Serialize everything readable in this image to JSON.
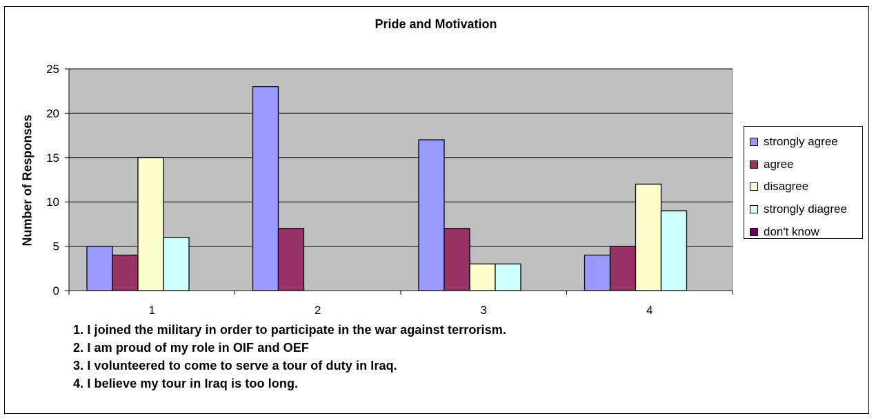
{
  "chart_data": {
    "type": "bar",
    "title": "Pride and Motivation",
    "xlabel": "",
    "ylabel": "Number of Responses",
    "categories": [
      "1",
      "2",
      "3",
      "4"
    ],
    "ylim": [
      0,
      25
    ],
    "yticks": [
      0,
      5,
      10,
      15,
      20,
      25
    ],
    "grid": true,
    "legend_position": "right",
    "series": [
      {
        "name": "strongly agree",
        "color": "#9999ff",
        "values": [
          5,
          23,
          17,
          4
        ]
      },
      {
        "name": "agree",
        "color": "#993366",
        "values": [
          4,
          7,
          7,
          5
        ]
      },
      {
        "name": "disagree",
        "color": "#ffffcc",
        "values": [
          15,
          0,
          3,
          12
        ]
      },
      {
        "name": "strongly diagree",
        "color": "#ccffff",
        "values": [
          6,
          0,
          3,
          9
        ]
      },
      {
        "name": "don't know",
        "color": "#660066",
        "values": [
          0,
          0,
          0,
          0
        ]
      }
    ],
    "notes": [
      "1. I joined the military in order to participate in the war against terrorism.",
      "2. I am proud of my role in OIF and OEF",
      "3. I volunteered to come to serve a tour of duty in Iraq.",
      "4. I believe my tour in Iraq is too long."
    ]
  }
}
